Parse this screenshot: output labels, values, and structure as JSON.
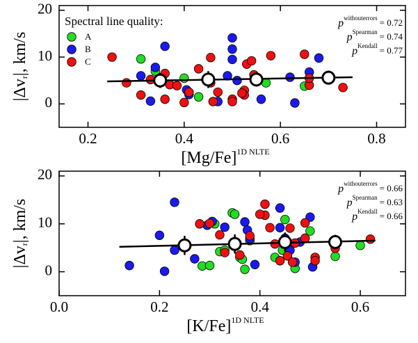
{
  "chart_data": [
    {
      "type": "scatter",
      "xlabel": "[Mg/Fe]",
      "xlabel_sup": "1D NLTE",
      "ylabel": "|Δv",
      "ylabel_sub": "r",
      "ylabel_end": "|, km/s",
      "legend_title": "Spectral line quality:",
      "legend_loc": "upper left",
      "xlim": [
        0.14,
        0.86
      ],
      "ylim": [
        -5,
        21
      ],
      "xticks": [
        0.2,
        0.4,
        0.6,
        0.8
      ],
      "yticks": [
        0,
        10,
        20
      ],
      "series": [
        {
          "name": "A",
          "color": "#22dd22",
          "x": [
            0.31,
            0.34,
            0.4,
            0.43,
            0.57,
            0.65
          ],
          "values": [
            9.6,
            7.0,
            5.5,
            1.5,
            4.5,
            3.8
          ]
        },
        {
          "name": "B",
          "color": "#1a1aee",
          "x": [
            0.31,
            0.33,
            0.34,
            0.36,
            0.405,
            0.41,
            0.47,
            0.49,
            0.5,
            0.5,
            0.5,
            0.51,
            0.56,
            0.62,
            0.63,
            0.68,
            0.66
          ],
          "values": [
            6.0,
            0.6,
            7.8,
            12.3,
            3.0,
            2.0,
            0.5,
            6.0,
            14.1,
            11.7,
            9.5,
            5.0,
            1.0,
            5.7,
            0.2,
            9.8,
            6.8
          ]
        },
        {
          "name": "C",
          "color": "#ee1111",
          "x": [
            0.25,
            0.28,
            0.31,
            0.33,
            0.36,
            0.36,
            0.37,
            0.385,
            0.4,
            0.41,
            0.43,
            0.455,
            0.455,
            0.46,
            0.47,
            0.5,
            0.5,
            0.525,
            0.525,
            0.53,
            0.54,
            0.545,
            0.55,
            0.58,
            0.65,
            0.66,
            0.66,
            0.73,
            0.52
          ],
          "values": [
            10.0,
            4.5,
            1.9,
            5.2,
            1.0,
            6.5,
            4.1,
            3.9,
            0.3,
            2.5,
            7.5,
            9.9,
            4.5,
            0.5,
            2.5,
            1.0,
            0.5,
            2.9,
            1.9,
            8.5,
            9.2,
            6.2,
            5.0,
            10.3,
            10.6,
            4.0,
            5.5,
            3.5,
            2.3
          ]
        }
      ],
      "binned": {
        "x": [
          0.35,
          0.45,
          0.55,
          0.7
        ],
        "values": [
          5.0,
          5.2,
          5.2,
          5.6
        ],
        "errors": [
          1.6,
          1.8,
          1.5,
          1.5
        ]
      },
      "fit": {
        "x": [
          0.24,
          0.75
        ],
        "values": [
          4.8,
          5.7
        ]
      },
      "stats": [
        {
          "symbol": "p",
          "sup": "withouterrors",
          "text": "= 0.72"
        },
        {
          "symbol": "p",
          "sup": "Spearman",
          "text": "= 0.74"
        },
        {
          "symbol": "p",
          "sup": "Kendall",
          "text": "= 0.77"
        }
      ]
    },
    {
      "type": "scatter",
      "xlabel": "[K/Fe]",
      "xlabel_sup": "1D NLTE",
      "ylabel": "|Δv",
      "ylabel_sub": "r",
      "ylabel_end": "|, km/s",
      "xlim": [
        0,
        0.69
      ],
      "ylim": [
        -5,
        21
      ],
      "xticks": [
        {
          "value": 0,
          "label": "0.0"
        },
        0.2,
        0.4,
        0.6
      ],
      "yticks": [
        0,
        10,
        20
      ],
      "series": [
        {
          "color": "#22dd22",
          "x": [
            0.285,
            0.3,
            0.31,
            0.32,
            0.33,
            0.345,
            0.35,
            0.36,
            0.365,
            0.37,
            0.38,
            0.43,
            0.45,
            0.445,
            0.47,
            0.5,
            0.55,
            0.6
          ],
          "values": [
            1.2,
            1.3,
            10.0,
            4.2,
            4.5,
            12.3,
            12.0,
            3.0,
            2.6,
            0.5,
            6.5,
            3.0,
            10.9,
            4.5,
            0.7,
            8.5,
            3.2,
            5.5
          ]
        },
        {
          "color": "#1a1aee",
          "x": [
            0.14,
            0.2,
            0.21,
            0.23,
            0.23,
            0.27,
            0.295,
            0.305,
            0.33,
            0.35,
            0.37,
            0.375,
            0.38,
            0.39,
            0.44,
            0.44,
            0.45,
            0.46,
            0.47,
            0.48,
            0.5,
            0.505
          ],
          "values": [
            1.3,
            7.6,
            0.1,
            14.5,
            4.5,
            2.7,
            9.7,
            10.5,
            9.3,
            5.5,
            10.4,
            8.7,
            6.9,
            1.5,
            13.3,
            9.2,
            7.0,
            4.5,
            2.0,
            6.2,
            11.4,
            1.0
          ]
        },
        {
          "color": "#ee1111",
          "x": [
            0.28,
            0.3,
            0.32,
            0.36,
            0.38,
            0.41,
            0.41,
            0.42,
            0.43,
            0.44,
            0.455,
            0.46,
            0.465,
            0.47,
            0.49,
            0.49,
            0.51,
            0.51,
            0.55,
            0.62,
            0.33,
            0.4
          ],
          "values": [
            10.0,
            10.1,
            7.7,
            3.5,
            7.5,
            14.1,
            11.8,
            9.2,
            5.8,
            2.3,
            3.3,
            9.1,
            2.0,
            6.0,
            7.0,
            10.2,
            3.0,
            2.3,
            4.9,
            6.8,
            4.0,
            12.0
          ]
        }
      ],
      "binned": {
        "x": [
          0.25,
          0.35,
          0.45,
          0.55
        ],
        "values": [
          5.5,
          5.8,
          6.2,
          6.2
        ],
        "errors": [
          2.0,
          2.0,
          2.0,
          1.5
        ]
      },
      "fit": {
        "x": [
          0.12,
          0.63
        ],
        "values": [
          5.2,
          6.5
        ]
      },
      "stats": [
        {
          "symbol": "p",
          "sup": "withouterrors",
          "text": "= 0.66"
        },
        {
          "symbol": "p",
          "sup": "Spearman",
          "text": "= 0.63"
        },
        {
          "symbol": "p",
          "sup": "Kendall",
          "text": "= 0.66"
        }
      ]
    }
  ]
}
